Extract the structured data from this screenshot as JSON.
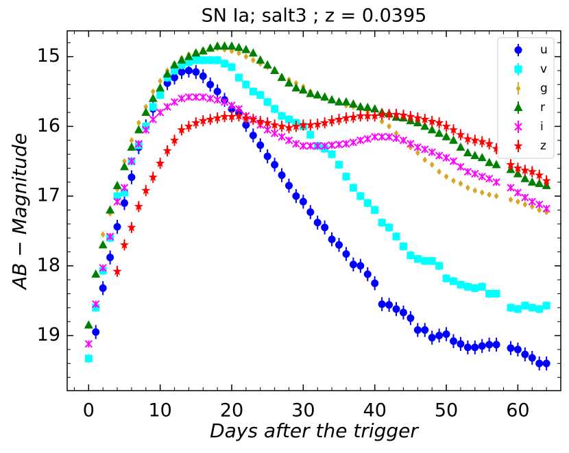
{
  "chart_data": {
    "type": "scatter",
    "title": "SN Ia; salt3 ; z = 0.0395",
    "x_label": "Days after the trigger",
    "y_label": "AB − Magnitude",
    "x": [
      0,
      1,
      2,
      3,
      4,
      5,
      6,
      7,
      8,
      9,
      10,
      11,
      12,
      13,
      14,
      15,
      16,
      17,
      18,
      19,
      20,
      21,
      22,
      23,
      24,
      25,
      26,
      27,
      28,
      29,
      30,
      31,
      32,
      33,
      34,
      35,
      36,
      37,
      38,
      39,
      40,
      41,
      42,
      43,
      44,
      45,
      46,
      47,
      48,
      49,
      50,
      51,
      52,
      53,
      54,
      55,
      56,
      57,
      59,
      60,
      61,
      62,
      63,
      64
    ],
    "xlim": [
      -3,
      66
    ],
    "xticks": [
      0,
      10,
      20,
      30,
      40,
      50,
      60
    ],
    "ylim": [
      14.63,
      19.79
    ],
    "y_inverted": true,
    "yticks": [
      15,
      16,
      17,
      18,
      19
    ],
    "legend": "upper right",
    "series": [
      {
        "name": "u",
        "color": "#0000ff",
        "marker": "circle",
        "error": 0.1,
        "values": [
          null,
          18.95,
          18.32,
          17.88,
          17.44,
          17.1,
          16.73,
          16.3,
          16.0,
          15.75,
          15.5,
          15.38,
          15.3,
          15.22,
          15.2,
          15.22,
          15.28,
          15.4,
          15.5,
          15.62,
          15.75,
          15.8,
          15.98,
          16.13,
          16.27,
          16.43,
          16.55,
          16.7,
          16.85,
          17.0,
          17.08,
          17.23,
          17.38,
          17.45,
          17.62,
          17.7,
          17.83,
          17.98,
          18.0,
          18.12,
          18.25,
          18.55,
          18.56,
          18.62,
          18.67,
          18.75,
          18.92,
          18.92,
          19.03,
          19.0,
          18.98,
          19.08,
          19.12,
          19.17,
          19.17,
          19.15,
          19.13,
          19.13,
          19.18,
          19.2,
          19.27,
          19.32,
          19.4,
          19.4
        ]
      },
      {
        "name": "v",
        "color": "#00ffff",
        "marker": "square",
        "error": 0.06,
        "values": [
          19.33,
          18.6,
          18.07,
          17.6,
          17.0,
          16.95,
          16.5,
          16.27,
          16.0,
          15.72,
          15.55,
          15.3,
          15.2,
          15.12,
          15.08,
          15.05,
          15.05,
          15.05,
          15.05,
          15.1,
          15.15,
          15.3,
          15.4,
          15.5,
          15.55,
          15.65,
          15.75,
          15.85,
          15.9,
          15.95,
          16.0,
          16.12,
          16.28,
          16.32,
          16.4,
          16.55,
          16.72,
          16.88,
          17.0,
          17.1,
          17.2,
          17.38,
          17.45,
          17.58,
          17.72,
          17.85,
          17.9,
          17.93,
          17.93,
          18.0,
          18.18,
          18.22,
          18.27,
          18.3,
          18.32,
          18.3,
          18.4,
          18.4,
          18.6,
          18.62,
          18.57,
          18.6,
          18.62,
          18.57
        ]
      },
      {
        "name": "g",
        "color": "#daa520",
        "marker": "dot",
        "error": 0.04,
        "values": [
          null,
          null,
          17.55,
          17.25,
          16.9,
          16.5,
          16.2,
          15.95,
          15.72,
          15.5,
          15.35,
          15.2,
          15.1,
          15.02,
          14.97,
          14.93,
          14.9,
          14.88,
          14.88,
          14.9,
          14.92,
          14.95,
          15.0,
          15.05,
          15.1,
          15.15,
          15.2,
          15.28,
          15.33,
          15.38,
          15.43,
          15.5,
          15.55,
          15.6,
          15.63,
          15.65,
          15.7,
          15.72,
          15.75,
          15.8,
          15.85,
          15.93,
          16.0,
          16.1,
          16.2,
          16.3,
          16.38,
          16.48,
          16.55,
          16.65,
          16.72,
          16.78,
          16.82,
          16.88,
          16.92,
          16.95,
          16.98,
          17.0,
          17.05,
          17.08,
          17.12,
          17.15,
          17.2,
          17.23
        ]
      },
      {
        "name": "r",
        "color": "#008000",
        "marker": "triangle",
        "error": 0.05,
        "values": [
          18.85,
          18.12,
          17.7,
          17.2,
          16.85,
          16.58,
          16.3,
          16.05,
          15.8,
          15.6,
          15.45,
          15.25,
          15.12,
          15.05,
          15.0,
          14.95,
          14.92,
          14.88,
          14.85,
          14.85,
          14.85,
          14.87,
          14.9,
          14.95,
          15.05,
          15.12,
          15.2,
          15.3,
          15.38,
          15.45,
          15.48,
          15.53,
          15.55,
          15.58,
          15.62,
          15.65,
          15.65,
          15.68,
          15.72,
          15.73,
          15.75,
          15.8,
          15.82,
          15.87,
          15.88,
          15.92,
          15.95,
          16.0,
          16.05,
          16.1,
          16.15,
          16.2,
          16.3,
          16.38,
          16.42,
          16.45,
          16.52,
          16.55,
          16.62,
          16.68,
          16.75,
          16.8,
          16.82,
          16.85
        ]
      },
      {
        "name": "i",
        "color": "#ff00ff",
        "marker": "x",
        "error": 0.05,
        "values": [
          19.12,
          18.55,
          18.03,
          17.58,
          17.08,
          16.88,
          16.5,
          16.25,
          16.05,
          15.9,
          15.8,
          15.72,
          15.65,
          15.6,
          15.58,
          15.58,
          15.58,
          15.6,
          15.62,
          15.65,
          15.7,
          15.75,
          15.85,
          15.9,
          15.98,
          16.05,
          16.1,
          16.15,
          16.2,
          16.25,
          16.28,
          16.28,
          16.28,
          16.28,
          16.27,
          16.26,
          16.25,
          16.23,
          16.2,
          16.18,
          16.15,
          16.15,
          16.15,
          16.17,
          16.2,
          16.25,
          16.3,
          16.33,
          16.37,
          16.42,
          16.45,
          16.5,
          16.58,
          16.65,
          16.68,
          16.72,
          16.75,
          16.8,
          16.88,
          16.95,
          17.02,
          17.08,
          17.12,
          17.18
        ]
      },
      {
        "name": "z",
        "color": "#ff0000",
        "marker": "star",
        "error": 0.08,
        "values": [
          null,
          null,
          null,
          null,
          18.08,
          17.7,
          17.45,
          17.15,
          16.92,
          16.73,
          16.53,
          16.35,
          16.2,
          16.05,
          16.0,
          15.95,
          15.92,
          15.9,
          15.88,
          15.86,
          15.86,
          15.85,
          15.88,
          15.9,
          15.93,
          15.95,
          15.98,
          16.0,
          16.02,
          16.0,
          15.98,
          15.98,
          15.97,
          15.95,
          15.92,
          15.9,
          15.88,
          15.87,
          15.85,
          15.85,
          15.85,
          15.83,
          15.83,
          15.83,
          15.84,
          15.86,
          15.88,
          15.9,
          15.93,
          15.95,
          16.0,
          16.05,
          16.12,
          16.18,
          16.2,
          16.22,
          16.25,
          16.32,
          16.55,
          16.6,
          16.63,
          16.65,
          16.7,
          16.78
        ]
      }
    ]
  }
}
